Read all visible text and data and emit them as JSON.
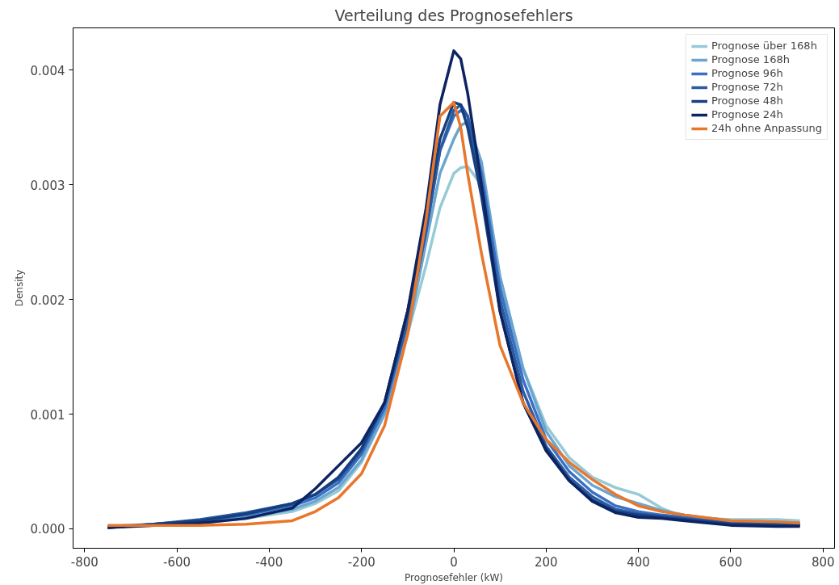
{
  "chart_data": {
    "type": "line",
    "title": "Verteilung des Prognosefehlers",
    "xlabel": "Prognosefehler (kW)",
    "ylabel": "Density",
    "x": [
      -750,
      -650,
      -550,
      -450,
      -350,
      -300,
      -250,
      -200,
      -150,
      -100,
      -60,
      -30,
      0,
      15,
      30,
      60,
      100,
      150,
      200,
      250,
      300,
      350,
      400,
      450,
      500,
      600,
      700,
      750
    ],
    "xlim": [
      -825,
      825
    ],
    "xticks": [
      -800,
      -600,
      -400,
      -200,
      0,
      200,
      400,
      600,
      800
    ],
    "ylim": [
      -0.00017,
      0.00437
    ],
    "yticks": [
      {
        "value": 0,
        "label": "0.000"
      },
      {
        "value": 0.001,
        "label": "0.001"
      },
      {
        "value": 0.002,
        "label": "0.002"
      },
      {
        "value": 0.003,
        "label": "0.003"
      },
      {
        "value": 0.004,
        "label": "0.004"
      }
    ],
    "grid": false,
    "legend": "top right",
    "line_style": "solid",
    "marker": "none",
    "series": [
      {
        "name": "Prognose über 168h",
        "color": "#96cad6",
        "values": [
          2e-05,
          3e-05,
          5e-05,
          9e-05,
          0.00015,
          0.00022,
          0.00033,
          0.00058,
          0.001,
          0.0017,
          0.0023,
          0.0028,
          0.0031,
          0.00315,
          0.00316,
          0.003,
          0.0022,
          0.0014,
          0.0009,
          0.00062,
          0.00045,
          0.00036,
          0.0003,
          0.00018,
          0.0001,
          8e-05,
          8e-05,
          7e-05
        ]
      },
      {
        "name": "Prognose 168h",
        "color": "#6aa6d0",
        "values": [
          2e-05,
          3e-05,
          6e-05,
          0.0001,
          0.00017,
          0.00024,
          0.00036,
          0.0006,
          0.001,
          0.0017,
          0.0025,
          0.0031,
          0.0034,
          0.00352,
          0.00355,
          0.0032,
          0.0022,
          0.0014,
          0.00085,
          0.00055,
          0.00038,
          0.00028,
          0.00022,
          0.00016,
          0.00012,
          7e-05,
          6e-05,
          5e-05
        ]
      },
      {
        "name": "Prognose 96h",
        "color": "#3a6fc4",
        "values": [
          2e-05,
          4e-05,
          7e-05,
          0.00012,
          0.0002,
          0.00027,
          0.0004,
          0.00065,
          0.00105,
          0.0018,
          0.0026,
          0.0033,
          0.0036,
          0.00365,
          0.0036,
          0.0031,
          0.0021,
          0.0013,
          0.00078,
          0.0005,
          0.00032,
          0.0002,
          0.00015,
          0.00012,
          0.0001,
          6e-05,
          5e-05,
          4e-05
        ]
      },
      {
        "name": "Prognose 72h",
        "color": "#2a5aa0",
        "values": [
          1e-05,
          4e-05,
          8e-05,
          0.00014,
          0.00022,
          0.0003,
          0.00043,
          0.00068,
          0.0011,
          0.0018,
          0.0026,
          0.0033,
          0.00365,
          0.0037,
          0.0036,
          0.003,
          0.002,
          0.0012,
          0.00072,
          0.00045,
          0.00028,
          0.00017,
          0.00013,
          0.00011,
          9e-05,
          5e-05,
          4e-05,
          3e-05
        ]
      },
      {
        "name": "Prognose 48h",
        "color": "#163f80",
        "values": [
          1e-05,
          4e-05,
          7e-05,
          0.00013,
          0.00022,
          0.0003,
          0.00045,
          0.0007,
          0.0011,
          0.0019,
          0.0027,
          0.0034,
          0.00372,
          0.0037,
          0.0035,
          0.0029,
          0.0019,
          0.0011,
          0.0007,
          0.00042,
          0.00025,
          0.00015,
          0.00012,
          0.0001,
          8e-05,
          4e-05,
          3e-05,
          3e-05
        ]
      },
      {
        "name": "Prognose 24h",
        "color": "#0c2461",
        "values": [
          1e-05,
          3e-05,
          5e-05,
          9e-05,
          0.00018,
          0.00035,
          0.00055,
          0.00075,
          0.0011,
          0.0019,
          0.0028,
          0.0037,
          0.00417,
          0.0041,
          0.0038,
          0.003,
          0.0019,
          0.0011,
          0.00068,
          0.00042,
          0.00024,
          0.00014,
          0.0001,
          9e-05,
          7e-05,
          3e-05,
          2e-05,
          2e-05
        ]
      },
      {
        "name": "24h ohne Anpassung",
        "color": "#e8762b",
        "values": [
          3e-05,
          3e-05,
          3e-05,
          4e-05,
          7e-05,
          0.00015,
          0.00027,
          0.00048,
          0.0009,
          0.0017,
          0.0027,
          0.0036,
          0.00372,
          0.0035,
          0.0031,
          0.0024,
          0.0016,
          0.0011,
          0.00078,
          0.00058,
          0.00043,
          0.0003,
          0.0002,
          0.00015,
          0.00012,
          7e-05,
          6e-05,
          5e-05
        ]
      }
    ]
  }
}
